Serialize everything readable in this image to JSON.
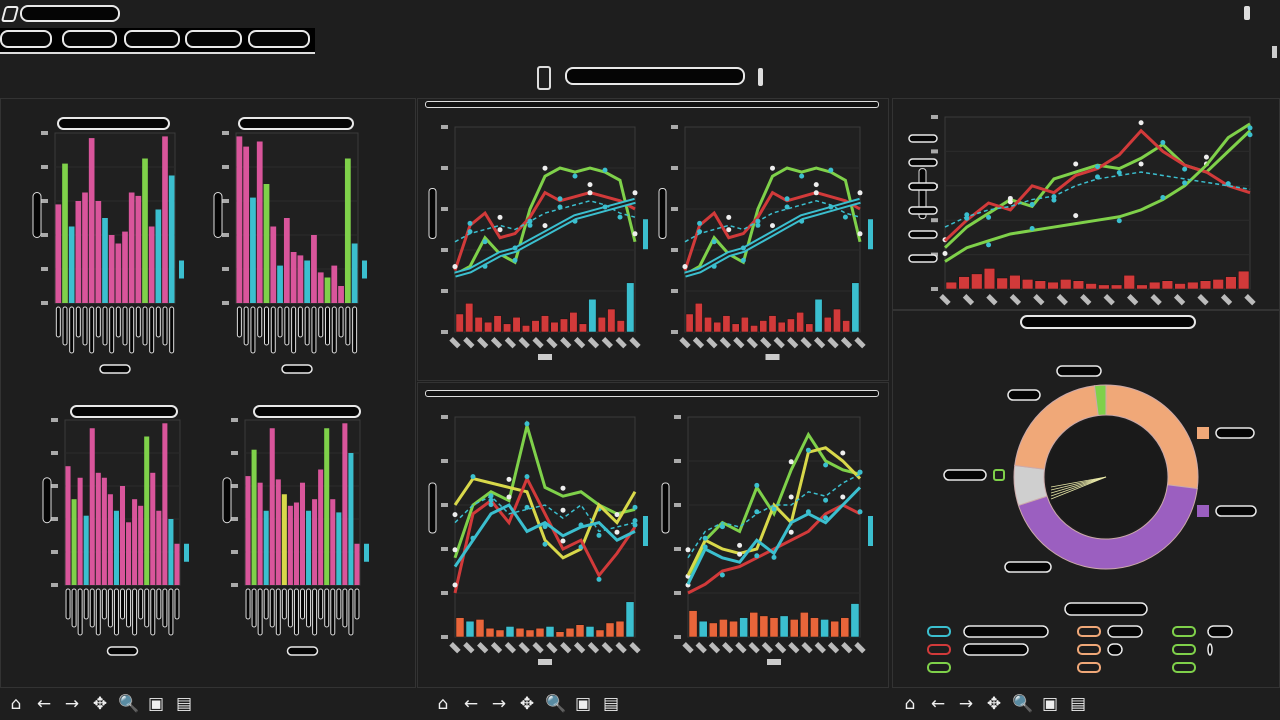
{
  "colors": {
    "pink": "#d9559b",
    "green": "#7fd14a",
    "cyan": "#3bbfcf",
    "red": "#d23a3a",
    "orange": "#f0a878",
    "purple": "#9b5fc0",
    "gray": "#cfcfcf",
    "yellow": "#d8d84a",
    "bg": "#1e1e1e"
  },
  "toolbar_icons": [
    "home-icon",
    "back-arrow-icon",
    "forward-arrow-icon",
    "pan-icon",
    "zoom-icon",
    "subplots-icon",
    "save-icon"
  ],
  "toolbar_glyphs": [
    "⌂",
    "←",
    "→",
    "✥",
    "🔍",
    "▣",
    "▤"
  ],
  "chart_data": [
    {
      "type": "bar",
      "values": [
        58,
        82,
        45,
        60,
        65,
        97,
        60,
        50,
        40,
        35,
        42,
        65,
        63,
        85,
        45,
        55,
        98,
        75
      ],
      "colors": [
        "pink",
        "green",
        "cyan",
        "pink",
        "pink",
        "pink",
        "pink",
        "cyan",
        "pink",
        "pink",
        "pink",
        "pink",
        "pink",
        "green",
        "pink",
        "cyan",
        "pink",
        "cyan"
      ],
      "ylim": [
        0,
        100
      ]
    },
    {
      "type": "bar",
      "values": [
        98,
        92,
        62,
        95,
        70,
        45,
        22,
        50,
        30,
        28,
        25,
        40,
        18,
        15,
        22,
        10,
        85,
        35
      ],
      "colors": [
        "pink",
        "pink",
        "cyan",
        "pink",
        "green",
        "pink",
        "cyan",
        "pink",
        "pink",
        "pink",
        "cyan",
        "pink",
        "pink",
        "green",
        "pink",
        "pink",
        "green",
        "cyan"
      ],
      "ylim": [
        0,
        100
      ]
    },
    {
      "type": "bar",
      "values": [
        72,
        52,
        65,
        42,
        95,
        68,
        65,
        55,
        45,
        60,
        38,
        52,
        48,
        90,
        68,
        45,
        98,
        40,
        25
      ],
      "colors": [
        "pink",
        "green",
        "pink",
        "cyan",
        "pink",
        "pink",
        "pink",
        "pink",
        "cyan",
        "pink",
        "pink",
        "pink",
        "pink",
        "green",
        "pink",
        "pink",
        "pink",
        "cyan",
        "pink"
      ],
      "ylim": [
        0,
        100
      ]
    },
    {
      "type": "bar",
      "values": [
        66,
        82,
        62,
        45,
        95,
        64,
        55,
        48,
        50,
        62,
        45,
        52,
        70,
        95,
        52,
        44,
        98,
        80,
        25
      ],
      "colors": [
        "pink",
        "green",
        "pink",
        "cyan",
        "pink",
        "pink",
        "yellow",
        "pink",
        "pink",
        "pink",
        "cyan",
        "pink",
        "pink",
        "green",
        "pink",
        "cyan",
        "pink",
        "cyan",
        "pink"
      ],
      "ylim": [
        0,
        100
      ]
    },
    {
      "type": "line",
      "ylim": [
        0,
        250
      ],
      "series": [
        {
          "color": "green",
          "values": [
            70,
            80,
            115,
            95,
            85,
            150,
            190,
            200,
            195,
            200,
            195,
            185,
            110
          ]
        },
        {
          "color": "red",
          "values": [
            75,
            130,
            145,
            115,
            120,
            140,
            170,
            160,
            165,
            170,
            165,
            160,
            150
          ]
        },
        {
          "color": "cyan",
          "values": [
            70,
            75,
            85,
            95,
            100,
            110,
            120,
            130,
            140,
            145,
            150,
            155,
            160
          ],
          "double": true
        },
        {
          "color": "cyan",
          "values": [
            110,
            120,
            125,
            130,
            125,
            135,
            145,
            150,
            155,
            160,
            155,
            145,
            140
          ],
          "dashed": true
        }
      ],
      "bars": [
        22,
        35,
        18,
        12,
        20,
        10,
        18,
        8,
        14,
        20,
        12,
        16,
        24,
        10,
        40,
        18,
        28,
        14,
        60
      ],
      "bar_colors": "red-cyan-tail"
    },
    {
      "type": "line",
      "ylim": [
        0,
        250
      ],
      "series": [
        {
          "color": "green",
          "values": [
            70,
            80,
            115,
            95,
            85,
            150,
            190,
            200,
            195,
            200,
            195,
            185,
            110
          ]
        },
        {
          "color": "red",
          "values": [
            75,
            130,
            145,
            115,
            120,
            140,
            170,
            160,
            165,
            170,
            165,
            160,
            150
          ]
        },
        {
          "color": "cyan",
          "values": [
            70,
            75,
            85,
            95,
            100,
            110,
            120,
            130,
            140,
            145,
            150,
            155,
            160
          ],
          "double": true
        },
        {
          "color": "cyan",
          "values": [
            110,
            120,
            125,
            130,
            125,
            135,
            145,
            150,
            155,
            160,
            155,
            145,
            140
          ],
          "dashed": true
        }
      ],
      "bars": [
        22,
        35,
        18,
        12,
        20,
        10,
        18,
        8,
        14,
        20,
        12,
        16,
        24,
        10,
        40,
        18,
        28,
        14,
        60
      ],
      "bar_colors": "red-cyan-tail"
    },
    {
      "type": "line",
      "ylim": [
        0,
        250
      ],
      "series": [
        {
          "color": "green",
          "values": [
            90,
            150,
            165,
            155,
            240,
            170,
            160,
            165,
            150,
            140,
            145
          ]
        },
        {
          "color": "yellow",
          "values": [
            150,
            180,
            175,
            170,
            165,
            110,
            90,
            100,
            150,
            130,
            165
          ]
        },
        {
          "color": "red",
          "values": [
            50,
            140,
            155,
            130,
            180,
            140,
            100,
            110,
            70,
            95,
            125
          ]
        },
        {
          "color": "cyan",
          "values": [
            80,
            110,
            140,
            150,
            120,
            130,
            115,
            125,
            130,
            110,
            120
          ]
        },
        {
          "color": "cyan",
          "values": [
            130,
            150,
            160,
            140,
            145,
            150,
            135,
            150,
            120,
            125,
            130
          ],
          "dashed": true
        }
      ],
      "bars": [
        22,
        18,
        20,
        10,
        8,
        12,
        10,
        8,
        10,
        12,
        6,
        10,
        14,
        12,
        8,
        16,
        18,
        40
      ],
      "bar_colors": "mixed"
    },
    {
      "type": "line",
      "ylim": [
        0,
        250
      ],
      "series": [
        {
          "color": "green",
          "values": [
            60,
            110,
            130,
            120,
            170,
            140,
            190,
            230,
            200,
            190,
            185
          ]
        },
        {
          "color": "yellow",
          "values": [
            70,
            110,
            100,
            95,
            100,
            150,
            130,
            210,
            215,
            200,
            180
          ]
        },
        {
          "color": "red",
          "values": [
            50,
            60,
            75,
            80,
            90,
            100,
            110,
            120,
            140,
            150,
            140
          ]
        },
        {
          "color": "cyan",
          "values": [
            60,
            100,
            90,
            85,
            110,
            95,
            130,
            140,
            130,
            150,
            170
          ]
        },
        {
          "color": "cyan",
          "values": [
            90,
            120,
            130,
            125,
            140,
            150,
            150,
            165,
            160,
            175,
            185
          ],
          "dashed": true
        }
      ],
      "bars": [
        30,
        18,
        16,
        20,
        18,
        22,
        28,
        24,
        22,
        24,
        20,
        28,
        22,
        20,
        18,
        22,
        38
      ],
      "bar_colors": "mixed"
    },
    {
      "type": "line",
      "ylim": [
        0,
        250
      ],
      "series": [
        {
          "color": "green",
          "values": [
            60,
            90,
            110,
            130,
            120,
            160,
            170,
            180,
            175,
            190,
            210,
            180,
            170,
            200,
            230
          ]
        },
        {
          "color": "red",
          "values": [
            70,
            100,
            125,
            115,
            150,
            140,
            165,
            175,
            195,
            230,
            200,
            180,
            170,
            150,
            140
          ]
        },
        {
          "color": "green",
          "values": [
            40,
            60,
            70,
            80,
            85,
            90,
            95,
            100,
            105,
            115,
            130,
            150,
            180,
            220,
            240
          ]
        },
        {
          "color": "cyan",
          "values": [
            90,
            105,
            115,
            120,
            130,
            135,
            150,
            160,
            165,
            170,
            165,
            160,
            155,
            150,
            145
          ],
          "dashed": true
        }
      ],
      "bars": [
        10,
        18,
        22,
        30,
        16,
        20,
        14,
        12,
        10,
        14,
        12,
        8,
        6,
        6,
        20,
        6,
        10,
        12,
        8,
        10,
        12,
        14,
        18,
        26
      ],
      "bar_colors": "red"
    },
    {
      "type": "pie",
      "donut": true,
      "slices": [
        {
          "color": "orange",
          "value": 0.27
        },
        {
          "color": "purple",
          "value": 0.43
        },
        {
          "color": "gray",
          "value": 0.07
        },
        {
          "color": "orange",
          "value": 0.21
        },
        {
          "color": "green",
          "value": 0.02
        }
      ]
    }
  ],
  "legend": {
    "col1": [
      "cyan",
      "red",
      "green"
    ],
    "col2": [
      "orange",
      "orange",
      "orange"
    ],
    "col3": [
      "green",
      "green",
      "green"
    ]
  }
}
